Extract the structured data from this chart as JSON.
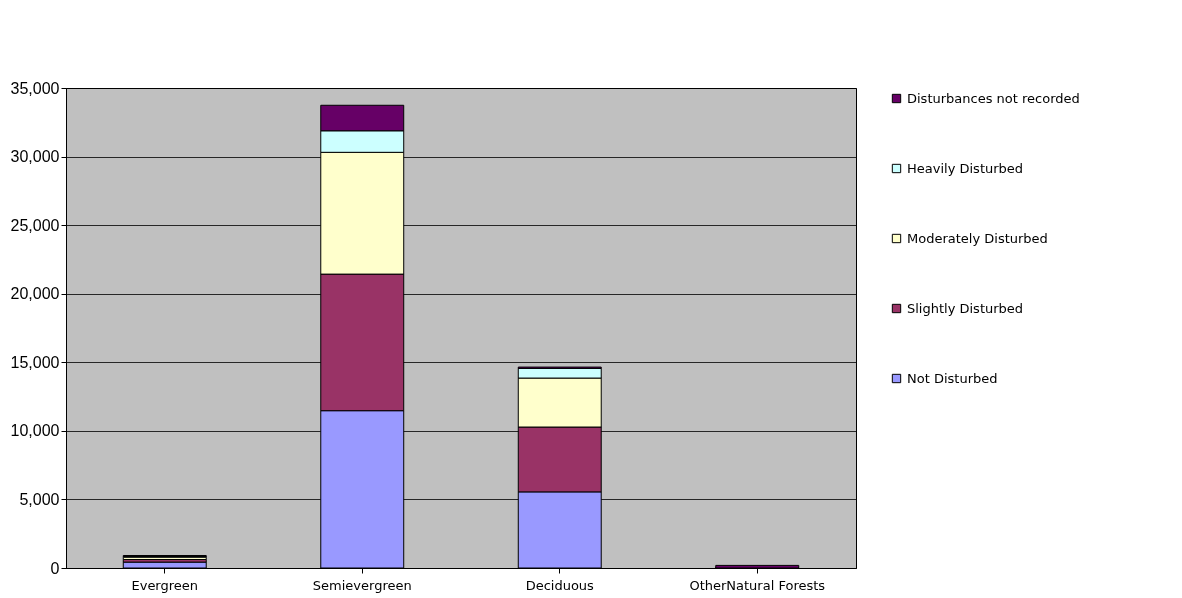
{
  "chart_data": {
    "type": "bar",
    "stacked": true,
    "categories": [
      "Evergreen",
      "Semievergreen",
      "Deciduous",
      "OtherNatural Forests"
    ],
    "series": [
      {
        "name": "Not Disturbed",
        "color": "#9999ff",
        "values": [
          430,
          11470,
          5550,
          0
        ]
      },
      {
        "name": "Slightly Disturbed",
        "color": "#993366",
        "values": [
          190,
          9960,
          4730,
          0
        ]
      },
      {
        "name": "Moderately Disturbed",
        "color": "#ffffcc",
        "values": [
          170,
          8880,
          3570,
          0
        ]
      },
      {
        "name": "Heavily Disturbed",
        "color": "#ccffff",
        "values": [
          50,
          1570,
          700,
          0
        ]
      },
      {
        "name": "Disturbances not recorded",
        "color": "#660066",
        "values": [
          70,
          1860,
          100,
          190
        ]
      }
    ],
    "ylim": [
      0,
      35000
    ],
    "yticks": [
      0,
      {
        "value": 5000,
        "label": "5,000"
      },
      {
        "value": 10000,
        "label": "10,000"
      },
      {
        "value": 15000,
        "label": "15,000"
      },
      {
        "value": 20000,
        "label": "20,000"
      },
      {
        "value": 25000,
        "label": "25,000"
      },
      {
        "value": 30000,
        "label": "30,000"
      },
      {
        "value": 35000,
        "label": "35,000"
      }
    ],
    "grid": "y",
    "legend": "right"
  }
}
